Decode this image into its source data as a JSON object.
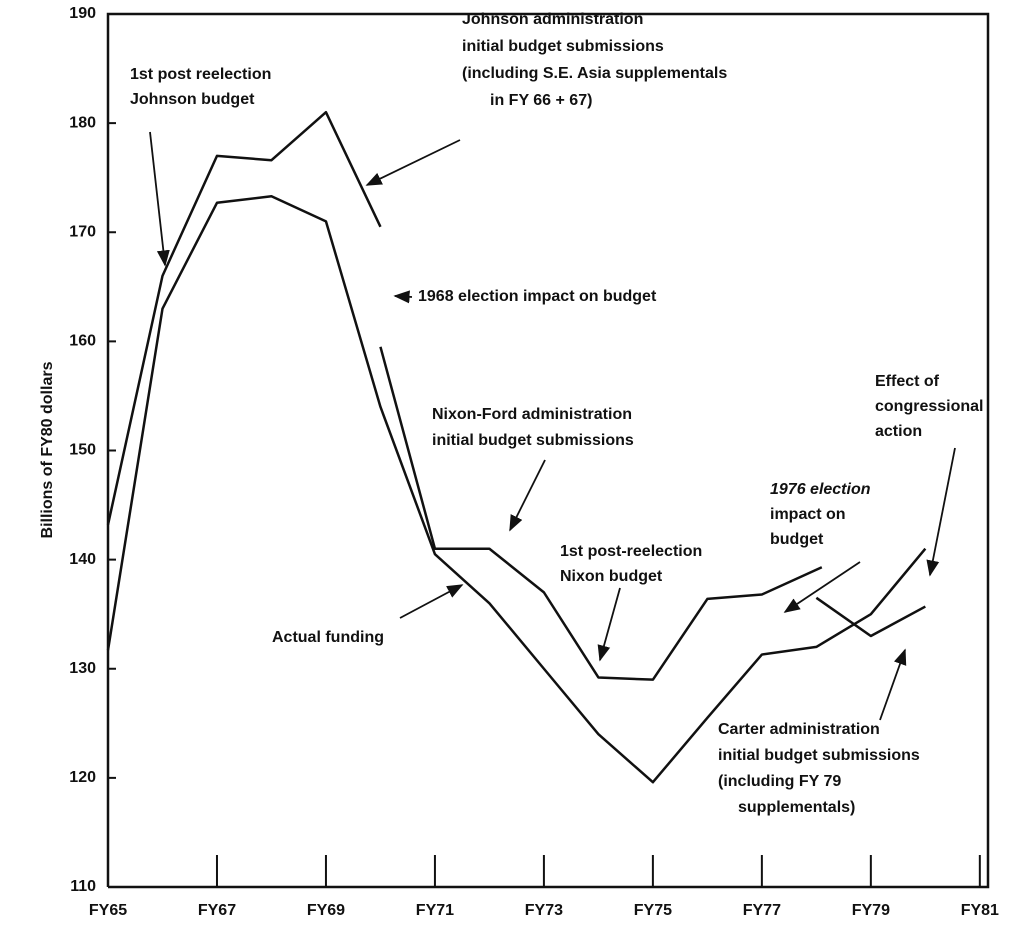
{
  "chart_data": {
    "type": "line",
    "y_label": "Billions of FY80 dollars",
    "xlim": [
      1965,
      1981.15
    ],
    "ylim": [
      110,
      190
    ],
    "xticks": [
      {
        "value": 1965,
        "label": "FY65"
      },
      {
        "value": 1967,
        "label": "FY67"
      },
      {
        "value": 1969,
        "label": "FY69"
      },
      {
        "value": 1971,
        "label": "FY71"
      },
      {
        "value": 1973,
        "label": "FY73"
      },
      {
        "value": 1975,
        "label": "FY75"
      },
      {
        "value": 1977,
        "label": "FY77"
      },
      {
        "value": 1979,
        "label": "FY79"
      },
      {
        "value": 1981,
        "label": "FY81"
      }
    ],
    "yticks": [
      110,
      120,
      130,
      140,
      150,
      160,
      170,
      180,
      190
    ],
    "series": [
      {
        "color": "#111111",
        "x": [
          1965,
          1966,
          1967,
          1968,
          1969,
          1970,
          1971,
          1972,
          1973,
          1974,
          1975,
          1976,
          1977,
          1978,
          1979,
          1980
        ],
        "values": [
          131.7,
          163,
          172.7,
          173.3,
          171,
          154,
          140.5,
          136,
          130,
          124,
          119.6,
          125.5,
          131.3,
          132,
          135,
          141
        ]
      },
      {
        "color": "#111111",
        "x": [
          1965,
          1966,
          1967,
          1968,
          1969,
          1970
        ],
        "values": [
          143.2,
          166,
          177,
          176.6,
          181,
          170.5
        ]
      },
      {
        "color": "#111111",
        "x": [
          1970,
          1971,
          1972,
          1973,
          1974,
          1975,
          1976,
          1977,
          1978.1
        ],
        "values": [
          159.5,
          141,
          141,
          137,
          129.2,
          129,
          136.4,
          136.8,
          139.3
        ]
      },
      {
        "color": "#111111",
        "x": [
          1978,
          1979,
          1980
        ],
        "values": [
          136.5,
          133,
          135.7
        ]
      }
    ],
    "annotations": [
      {
        "lines": [
          "1st post reelection",
          "Johnson budget"
        ]
      },
      {
        "lines": [
          "Johnson administration",
          "initial budget submissions",
          "(including S.E. Asia supplementals",
          "in FY 66 + 67)"
        ]
      },
      {
        "lines": [
          "1968 election impact on budget"
        ]
      },
      {
        "lines": [
          "Nixon-Ford administration",
          "initial budget submissions"
        ]
      },
      {
        "lines": [
          "Effect of",
          "congressional",
          "action"
        ]
      },
      {
        "lines": [
          "1976 election",
          "impact on",
          "budget"
        ]
      },
      {
        "lines": [
          "1st post-reelection",
          "Nixon budget"
        ]
      },
      {
        "lines": [
          "Actual funding"
        ]
      },
      {
        "lines": [
          "Carter administration",
          "initial budget submissions",
          "(including FY 79",
          "supplementals)"
        ]
      }
    ]
  }
}
